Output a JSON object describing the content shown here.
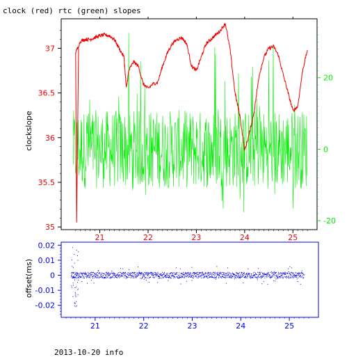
{
  "title": "clock (red) rtc (green) slopes",
  "footer": "2013-10-20 info",
  "colors": {
    "clock": "#ee0000",
    "rtc": "#00ee00",
    "offset": "#0000ee",
    "frame_upper": "#000000"
  },
  "chart_data": [
    {
      "type": "line",
      "ylabel": "clockslope",
      "xlim": [
        20.2,
        25.5
      ],
      "ylim": [
        34.97,
        37.33
      ],
      "y2lim": [
        -22.5,
        36.5
      ],
      "x_ticks": [
        "21",
        "22",
        "23",
        "24",
        "25"
      ],
      "y_ticks": [
        "35",
        "35.5",
        "36",
        "36.5",
        "37"
      ],
      "y2_ticks": [
        "-20",
        "0",
        "20"
      ],
      "grid": false,
      "series": [
        {
          "name": "clock",
          "axis": "left",
          "x": [
            20.5,
            20.6,
            20.7,
            20.8,
            20.9,
            21.0,
            21.1,
            21.2,
            21.3,
            21.4,
            21.5,
            21.55,
            21.6,
            21.7,
            21.8,
            21.9,
            22.0,
            22.1,
            22.2,
            22.3,
            22.4,
            22.5,
            22.6,
            22.7,
            22.8,
            22.9,
            23.0,
            23.1,
            23.2,
            23.3,
            23.4,
            23.5,
            23.6,
            23.7,
            23.8,
            23.9,
            24.0,
            24.1,
            24.2,
            24.3,
            24.4,
            24.5,
            24.6,
            24.7,
            24.8,
            24.9,
            25.0,
            25.1,
            25.2,
            25.3
          ],
          "values": [
            36.95,
            37.08,
            37.1,
            37.1,
            37.12,
            37.14,
            37.15,
            37.14,
            37.1,
            37.0,
            36.9,
            36.55,
            36.75,
            36.85,
            36.8,
            36.6,
            36.55,
            36.6,
            36.62,
            36.8,
            36.95,
            37.05,
            37.1,
            37.12,
            37.05,
            36.8,
            36.75,
            36.9,
            37.05,
            37.1,
            37.15,
            37.2,
            37.28,
            36.98,
            36.5,
            36.25,
            35.85,
            36.05,
            36.3,
            36.7,
            36.9,
            37.0,
            37.02,
            36.92,
            36.7,
            36.5,
            36.3,
            36.35,
            36.75,
            36.98
          ]
        },
        {
          "name": "rtc",
          "axis": "right",
          "x_range": [
            20.45,
            25.3
          ],
          "center": 0,
          "band": [
            -11,
            11
          ],
          "spike_range": [
            -20,
            33
          ]
        }
      ]
    },
    {
      "type": "scatter",
      "ylabel": "offset(ms)",
      "xlim": [
        20.3,
        25.6
      ],
      "ylim": [
        -0.028,
        0.022
      ],
      "x_ticks": [
        "21",
        "22",
        "23",
        "24",
        "25"
      ],
      "y_ticks": [
        "-0.02",
        "-0.01",
        "0",
        "0.01",
        "0.02"
      ],
      "grid": false,
      "series": [
        {
          "name": "offset",
          "x_range": [
            20.5,
            25.3
          ],
          "center": 0,
          "band": [
            -0.002,
            0.002
          ],
          "outliers_early": [
            -0.022,
            0.021
          ]
        }
      ]
    }
  ]
}
